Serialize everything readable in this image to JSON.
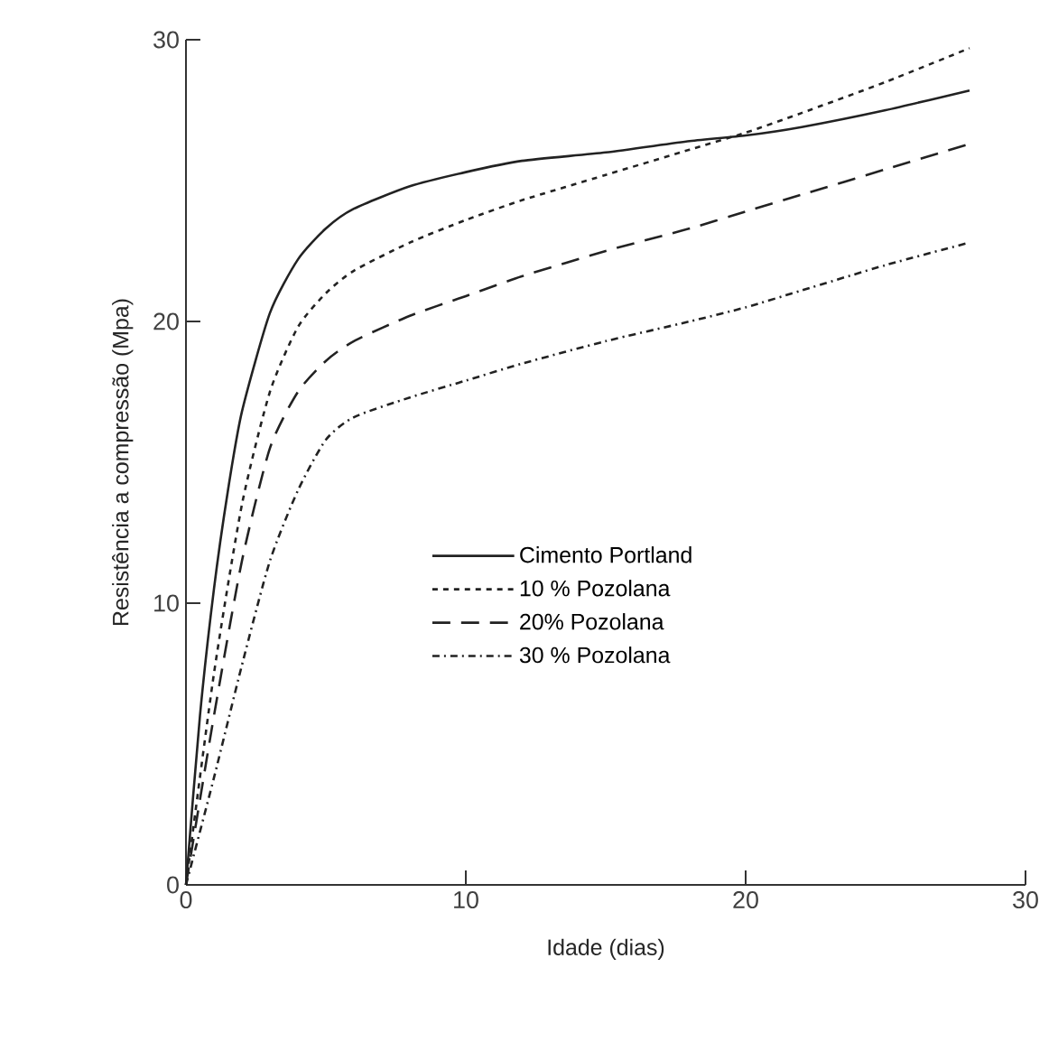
{
  "chart_data": {
    "type": "line",
    "xlabel": "Idade (dias)",
    "ylabel": "Resistência a compressão (Mpa)",
    "xlim": [
      0,
      30
    ],
    "ylim": [
      0,
      30
    ],
    "xticks": [
      0,
      10,
      20,
      30
    ],
    "yticks": [
      0,
      10,
      20,
      30
    ],
    "legend": "center",
    "marker": "none",
    "series": [
      {
        "name": "Cimento Portland",
        "color": "#222222",
        "line_style": "solid",
        "x": [
          0,
          0.5,
          1,
          1.5,
          2,
          3,
          4,
          5,
          6,
          8,
          10,
          12,
          15,
          18,
          20,
          22,
          25,
          28
        ],
        "values": [
          0,
          6,
          10.5,
          14,
          16.8,
          20.3,
          22.2,
          23.3,
          24.0,
          24.8,
          25.3,
          25.7,
          26.0,
          26.4,
          26.6,
          26.9,
          27.5,
          28.2
        ]
      },
      {
        "name": "10 % Pozolana",
        "color": "#222222",
        "line_style": "dotted",
        "x": [
          0,
          1,
          2,
          3,
          4,
          5,
          6,
          8,
          10,
          12,
          15,
          18,
          20,
          22,
          25,
          28
        ],
        "values": [
          0,
          7.5,
          13.5,
          17.5,
          19.8,
          21.0,
          21.8,
          22.8,
          23.6,
          24.3,
          25.2,
          26.1,
          26.7,
          27.4,
          28.5,
          29.7
        ]
      },
      {
        "name": "20% Pozolana",
        "color": "#222222",
        "line_style": "dashed",
        "x": [
          0,
          1,
          2,
          3,
          4,
          5,
          6,
          8,
          10,
          12,
          15,
          18,
          20,
          22,
          25,
          28
        ],
        "values": [
          0,
          6,
          11.5,
          15.5,
          17.5,
          18.6,
          19.3,
          20.2,
          20.9,
          21.6,
          22.5,
          23.3,
          23.9,
          24.5,
          25.4,
          26.3
        ]
      },
      {
        "name": "30 % Pozolana",
        "color": "#222222",
        "line_style": "dashdotted",
        "x": [
          0,
          1,
          2,
          3,
          4,
          5,
          6,
          8,
          10,
          12,
          15,
          18,
          20,
          22,
          25,
          28
        ],
        "values": [
          0,
          3.8,
          7.8,
          11.5,
          14,
          15.8,
          16.6,
          17.3,
          17.9,
          18.5,
          19.3,
          20.0,
          20.5,
          21.1,
          22.0,
          22.8
        ]
      }
    ]
  }
}
